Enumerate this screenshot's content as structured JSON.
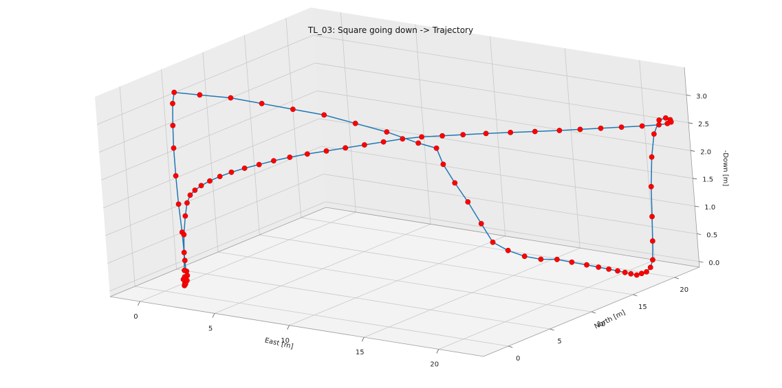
{
  "chart_data": {
    "type": "line",
    "projection": "3d",
    "title": "TL_03: Square going down -> Trajectory",
    "xlabel": "East [m]",
    "ylabel": "North [m]",
    "zlabel": "-Down [m]",
    "xlim": [
      -2,
      23
    ],
    "ylim": [
      -3,
      23
    ],
    "zlim": [
      -0.1,
      3.5
    ],
    "xticks": [
      0,
      5,
      10,
      15,
      20
    ],
    "yticks": [
      0,
      5,
      10,
      15,
      20
    ],
    "zticks": [
      0.0,
      0.5,
      1.0,
      1.5,
      2.0,
      2.5,
      3.0
    ],
    "xtick_labels": [
      "0",
      "5",
      "10",
      "15",
      "20"
    ],
    "ytick_labels": [
      "0",
      "5",
      "10",
      "15",
      "20"
    ],
    "ztick_labels": [
      "0.0",
      "0.5",
      "1.0",
      "1.5",
      "2.0",
      "2.5",
      "3.0"
    ],
    "grid": true,
    "line_color": "#1f77b4",
    "marker_color": "#ff0000",
    "series": [
      {
        "points": [
          [
            1.3,
            0.1,
            0.05
          ],
          [
            1.4,
            0.0,
            0.1
          ],
          [
            1.2,
            0.2,
            0.15
          ],
          [
            1.5,
            -0.1,
            0.1
          ],
          [
            1.3,
            0.2,
            0.2
          ],
          [
            1.6,
            0.0,
            0.25
          ],
          [
            1.4,
            0.3,
            0.3
          ],
          [
            1.5,
            0.1,
            0.15
          ],
          [
            1.4,
            0.2,
            0.5
          ],
          [
            1.3,
            0.3,
            1.0
          ],
          [
            1.2,
            0.3,
            1.5
          ],
          [
            1.1,
            0.4,
            2.0
          ],
          [
            1.1,
            0.4,
            2.5
          ],
          [
            1.1,
            0.5,
            2.9
          ],
          [
            1.2,
            0.5,
            3.3
          ],
          [
            1.3,
            0.6,
            3.5
          ],
          [
            2.5,
            1.5,
            3.45
          ],
          [
            4.0,
            2.5,
            3.4
          ],
          [
            5.5,
            3.5,
            3.3
          ],
          [
            7.0,
            4.5,
            3.2
          ],
          [
            8.5,
            5.5,
            3.1
          ],
          [
            10.0,
            6.5,
            2.95
          ],
          [
            11.5,
            7.5,
            2.8
          ],
          [
            13.0,
            8.5,
            2.6
          ],
          [
            13.8,
            9.2,
            2.5
          ],
          [
            14.0,
            9.5,
            2.2
          ],
          [
            14.4,
            10.0,
            1.85
          ],
          [
            14.9,
            10.5,
            1.5
          ],
          [
            15.4,
            11.0,
            1.1
          ],
          [
            15.8,
            11.5,
            0.75
          ],
          [
            16.5,
            12.0,
            0.6
          ],
          [
            17.3,
            12.5,
            0.5
          ],
          [
            18.1,
            13.0,
            0.45
          ],
          [
            18.9,
            13.5,
            0.45
          ],
          [
            19.6,
            14.0,
            0.4
          ],
          [
            20.3,
            14.5,
            0.35
          ],
          [
            20.8,
            15.0,
            0.3
          ],
          [
            21.2,
            15.5,
            0.25
          ],
          [
            21.5,
            16.0,
            0.2
          ],
          [
            21.7,
            16.5,
            0.15
          ],
          [
            21.8,
            17.0,
            0.1
          ],
          [
            21.9,
            17.5,
            0.05
          ],
          [
            21.95,
            18.0,
            0.05
          ],
          [
            22.0,
            18.5,
            0.05
          ],
          [
            22.0,
            19.0,
            0.1
          ],
          [
            21.9,
            19.5,
            0.2
          ],
          [
            21.7,
            20.0,
            0.5
          ],
          [
            21.5,
            20.5,
            0.9
          ],
          [
            21.3,
            21.0,
            1.4
          ],
          [
            21.2,
            21.5,
            1.9
          ],
          [
            21.3,
            21.8,
            2.3
          ],
          [
            21.6,
            22.0,
            2.55
          ],
          [
            22.0,
            22.1,
            2.6
          ],
          [
            22.3,
            22.1,
            2.58
          ],
          [
            22.4,
            22.0,
            2.55
          ],
          [
            22.2,
            21.9,
            2.52
          ],
          [
            21.8,
            21.6,
            2.5
          ],
          [
            21.0,
            21.0,
            2.48
          ],
          [
            20.0,
            20.3,
            2.46
          ],
          [
            19.0,
            19.6,
            2.44
          ],
          [
            18.0,
            18.9,
            2.42
          ],
          [
            17.0,
            18.2,
            2.4
          ],
          [
            15.8,
            17.4,
            2.38
          ],
          [
            14.6,
            16.6,
            2.36
          ],
          [
            13.4,
            15.8,
            2.34
          ],
          [
            12.3,
            15.0,
            2.32
          ],
          [
            11.3,
            14.3,
            2.3
          ],
          [
            10.3,
            13.6,
            2.28
          ],
          [
            9.4,
            12.9,
            2.25
          ],
          [
            8.5,
            12.2,
            2.2
          ],
          [
            7.6,
            11.5,
            2.15
          ],
          [
            6.7,
            10.8,
            2.1
          ],
          [
            5.8,
            10.1,
            2.05
          ],
          [
            4.9,
            9.4,
            2.0
          ],
          [
            4.1,
            8.7,
            1.95
          ],
          [
            3.4,
            8.0,
            1.9
          ],
          [
            2.8,
            7.3,
            1.85
          ],
          [
            2.2,
            6.6,
            1.8
          ],
          [
            1.7,
            5.9,
            1.75
          ],
          [
            1.3,
            5.2,
            1.7
          ],
          [
            1.0,
            4.5,
            1.65
          ],
          [
            0.8,
            3.8,
            1.6
          ],
          [
            0.7,
            3.2,
            1.55
          ],
          [
            0.7,
            2.6,
            1.5
          ],
          [
            0.8,
            2.0,
            1.4
          ],
          [
            0.9,
            1.5,
            1.2
          ],
          [
            1.0,
            1.0,
            0.9
          ],
          [
            1.1,
            0.7,
            0.6
          ],
          [
            1.2,
            0.4,
            0.3
          ]
        ]
      }
    ]
  }
}
